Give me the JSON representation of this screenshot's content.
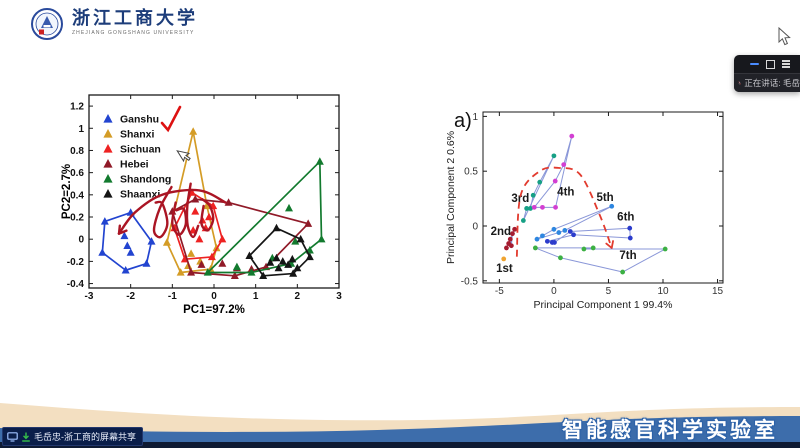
{
  "header": {
    "university_name_cn": "浙江工商大学",
    "university_name_en": "ZHEJIANG GONGSHANG UNIVERSITY"
  },
  "meeting_panel": {
    "speaking_status": "正在讲话: 毛岳",
    "controls": [
      "minimize",
      "restore",
      "menu"
    ],
    "mic_status": "muted"
  },
  "screen_share_badge": {
    "text": "毛岳忠-浙工商的屏幕共享",
    "icons": [
      "monitor-icon",
      "share-arrow-icon"
    ]
  },
  "footer": {
    "lab_title": "智能感官科学实验室"
  },
  "chart_data": [
    {
      "id": "pca-provinces",
      "type": "scatter",
      "title": "",
      "xlabel": "PC1=97.2%",
      "ylabel": "PC2=2.7%",
      "xlim": [
        -3,
        3
      ],
      "ylim": [
        -0.44,
        1.3
      ],
      "xticks": {
        "values": [
          -3,
          -2,
          -1,
          0,
          1,
          2,
          3
        ],
        "labels": [
          "-3",
          "-2",
          "-1",
          "0",
          "1",
          "2",
          "3"
        ]
      },
      "yticks": {
        "values": [
          -0.4,
          -0.2,
          0,
          0.2,
          0.4,
          0.6,
          0.8,
          1,
          1.2
        ],
        "labels": [
          "-0.4",
          "-0.2",
          "0",
          "0.2",
          "0.4",
          "0.6",
          "0.8",
          "1",
          "1.2"
        ]
      },
      "grid": false,
      "marker": "triangle",
      "legend": {
        "position": "top-left-inside",
        "checkmark_on": "Ganshu",
        "checkmark_color": "#dd1111"
      },
      "series": [
        {
          "name": "Ganshu",
          "color": "#2244d0",
          "hull": [
            [
              -2.62,
              0.16
            ],
            [
              -2.0,
              0.24
            ],
            [
              -1.5,
              -0.02
            ],
            [
              -1.62,
              -0.22
            ],
            [
              -2.12,
              -0.28
            ],
            [
              -2.68,
              -0.12
            ]
          ],
          "points": [
            [
              -2.62,
              0.16
            ],
            [
              -2.0,
              0.24
            ],
            [
              -1.5,
              -0.02
            ],
            [
              -1.62,
              -0.22
            ],
            [
              -2.12,
              -0.28
            ],
            [
              -2.68,
              -0.12
            ],
            [
              -2.15,
              0.03
            ],
            [
              -2.08,
              -0.06
            ],
            [
              -2.0,
              -0.12
            ]
          ]
        },
        {
          "name": "Shanxi",
          "color": "#d49c26",
          "hull": [
            [
              -0.5,
              0.97
            ],
            [
              -0.17,
              0.3
            ],
            [
              0.06,
              -0.08
            ],
            [
              -0.08,
              -0.27
            ],
            [
              -0.8,
              -0.3
            ],
            [
              -1.13,
              -0.03
            ]
          ],
          "points": [
            [
              -0.5,
              0.97
            ],
            [
              -0.17,
              0.3
            ],
            [
              0.06,
              -0.08
            ],
            [
              -0.08,
              -0.27
            ],
            [
              -0.8,
              -0.3
            ],
            [
              -1.13,
              -0.03
            ],
            [
              -0.55,
              -0.13
            ],
            [
              -0.33,
              -0.2
            ],
            [
              -0.62,
              -0.24
            ]
          ]
        },
        {
          "name": "Sichuan",
          "color": "#ee2222",
          "hull": [
            [
              -0.53,
              0.42
            ],
            [
              -0.02,
              0.3
            ],
            [
              0.2,
              0.0
            ],
            [
              -0.05,
              -0.16
            ],
            [
              -0.7,
              -0.18
            ],
            [
              -0.95,
              0.1
            ]
          ],
          "points": [
            [
              -0.53,
              0.42
            ],
            [
              -0.02,
              0.3
            ],
            [
              0.2,
              0.0
            ],
            [
              -0.05,
              -0.16
            ],
            [
              -0.7,
              -0.18
            ],
            [
              -0.95,
              0.1
            ],
            [
              -0.45,
              0.25
            ],
            [
              -0.28,
              0.17
            ],
            [
              -0.5,
              0.08
            ],
            [
              -0.2,
              0.1
            ],
            [
              -0.35,
              0.0
            ],
            [
              -0.12,
              0.2
            ]
          ]
        },
        {
          "name": "Hebei",
          "color": "#901a28",
          "hull": [
            [
              -1.0,
              0.25
            ],
            [
              -0.45,
              0.36
            ],
            [
              0.35,
              0.33
            ],
            [
              2.26,
              0.14
            ],
            [
              1.25,
              -0.25
            ],
            [
              0.5,
              -0.33
            ],
            [
              -0.55,
              -0.3
            ]
          ],
          "points": [
            [
              -1.0,
              0.25
            ],
            [
              -0.45,
              0.36
            ],
            [
              0.35,
              0.33
            ],
            [
              2.26,
              0.14
            ],
            [
              1.25,
              -0.25
            ],
            [
              0.5,
              -0.33
            ],
            [
              -0.55,
              -0.3
            ],
            [
              0.2,
              -0.22
            ],
            [
              0.55,
              -0.26
            ],
            [
              -0.3,
              -0.23
            ],
            [
              0.9,
              -0.27
            ]
          ]
        },
        {
          "name": "Shandong",
          "color": "#127a2e",
          "hull": [
            [
              -0.15,
              -0.3
            ],
            [
              2.54,
              0.7
            ],
            [
              2.58,
              0.0
            ],
            [
              1.85,
              -0.22
            ],
            [
              0.9,
              -0.3
            ]
          ],
          "points": [
            [
              -0.15,
              -0.3
            ],
            [
              2.54,
              0.7
            ],
            [
              2.58,
              0.0
            ],
            [
              1.85,
              -0.22
            ],
            [
              0.9,
              -0.3
            ],
            [
              1.8,
              0.28
            ],
            [
              1.95,
              -0.02
            ],
            [
              1.4,
              -0.17
            ],
            [
              0.55,
              -0.25
            ],
            [
              2.3,
              -0.1
            ]
          ]
        },
        {
          "name": "Shaanxi",
          "color": "#151515",
          "hull": [
            [
              1.5,
              0.1
            ],
            [
              2.08,
              0.0
            ],
            [
              2.3,
              -0.16
            ],
            [
              1.9,
              -0.31
            ],
            [
              1.18,
              -0.33
            ],
            [
              0.85,
              -0.15
            ]
          ],
          "points": [
            [
              1.5,
              0.1
            ],
            [
              2.08,
              0.0
            ],
            [
              2.3,
              -0.16
            ],
            [
              1.9,
              -0.31
            ],
            [
              1.18,
              -0.33
            ],
            [
              0.85,
              -0.15
            ],
            [
              1.5,
              -0.17
            ],
            [
              1.65,
              -0.2
            ],
            [
              1.78,
              -0.23
            ],
            [
              1.88,
              -0.18
            ],
            [
              1.55,
              -0.26
            ],
            [
              1.35,
              -0.21
            ],
            [
              2.0,
              -0.26
            ]
          ]
        }
      ],
      "annotations": {
        "pen_color": "#aa1524",
        "pen_strokes": [
          {
            "points": [
              [
                -1.02,
                0.47
              ],
              [
                -1.3,
                0.28
              ],
              [
                -1.44,
                0.08
              ],
              [
                -1.28,
                0.02
              ],
              [
                -1.12,
                0.14
              ],
              [
                -1.24,
                0.32
              ],
              [
                -1.4,
                0.33
              ]
            ],
            "arrow": false
          },
          {
            "points": [
              [
                -0.92,
                0.33
              ],
              [
                -1.0,
                0.14
              ],
              [
                -0.84,
                0.04
              ],
              [
                -0.68,
                0.13
              ],
              [
                -0.72,
                0.27
              ],
              [
                -0.9,
                0.26
              ]
            ],
            "arrow": false
          },
          {
            "points": [
              [
                -0.56,
                0.5
              ],
              [
                -0.64,
                0.3
              ],
              [
                -0.63,
                0.12
              ],
              [
                -0.5,
                0.02
              ],
              [
                -0.38,
                0.12
              ]
            ],
            "arrow": false
          },
          {
            "points": [
              [
                -0.25,
                0.3
              ],
              [
                -0.3,
                0.14
              ],
              [
                -0.15,
                0.08
              ],
              [
                -0.02,
                0.18
              ],
              [
                -0.1,
                0.3
              ],
              [
                -0.28,
                0.36
              ]
            ],
            "arrow": false
          },
          {
            "points": [
              [
                0.28,
                0.33
              ],
              [
                -0.35,
                0.44
              ],
              [
                -1.25,
                0.4
              ],
              [
                -1.9,
                0.24
              ],
              [
                -2.28,
                0.05
              ]
            ],
            "arrow": true
          }
        ]
      }
    },
    {
      "id": "pca-storage-time",
      "type": "scatter",
      "panel_label": "a)",
      "xlabel": "Principal Component 1 99.4%",
      "ylabel": "Principal Component 2 0.6%",
      "xlim": [
        -6.5,
        15.5
      ],
      "ylim": [
        -0.52,
        1.04
      ],
      "xticks": {
        "values": [
          -5,
          0,
          5,
          10,
          15
        ],
        "labels": [
          "-5",
          "0",
          "5",
          "10",
          "15"
        ]
      },
      "yticks": {
        "values": [
          -0.5,
          0,
          0.5,
          1
        ],
        "labels": [
          "-0.5",
          "0",
          "0.5",
          "1"
        ]
      },
      "grid": false,
      "marker": "circle",
      "trajectory_color": "#8a97d8",
      "series": [
        {
          "name": "1st",
          "color": "#f0a330",
          "label_pos": [
            -5.3,
            -0.42
          ],
          "points": [
            [
              -4.6,
              -0.3
            ]
          ]
        },
        {
          "name": "2nd",
          "color": "#a51c30",
          "label_pos": [
            -5.8,
            -0.08
          ],
          "points": [
            [
              -4.35,
              -0.2
            ],
            [
              -4.15,
              -0.16
            ],
            [
              -4.0,
              -0.12
            ],
            [
              -3.9,
              -0.18
            ],
            [
              -3.8,
              -0.07
            ],
            [
              -3.6,
              -0.03
            ]
          ]
        },
        {
          "name": "3rd",
          "color": "#16a085",
          "label_pos": [
            -3.9,
            0.22
          ],
          "points": [
            [
              -2.8,
              0.05
            ],
            [
              -2.5,
              0.16
            ],
            [
              -2.15,
              0.16
            ],
            [
              -1.9,
              0.28
            ],
            [
              -1.3,
              0.4
            ],
            [
              0.0,
              0.64
            ]
          ]
        },
        {
          "name": "4th",
          "color": "#d23fd2",
          "label_pos": [
            0.3,
            0.28
          ],
          "points": [
            [
              -1.8,
              0.17
            ],
            [
              -1.05,
              0.17
            ],
            [
              0.15,
              0.17
            ],
            [
              1.64,
              0.82
            ],
            [
              0.9,
              0.56
            ],
            [
              0.12,
              0.41
            ]
          ]
        },
        {
          "name": "5th",
          "color": "#2e86e0",
          "label_pos": [
            3.9,
            0.23
          ],
          "points": [
            [
              -1.55,
              -0.12
            ],
            [
              -1.05,
              -0.09
            ],
            [
              0.0,
              -0.03
            ],
            [
              5.3,
              0.18
            ],
            [
              1.0,
              -0.04
            ],
            [
              0.45,
              -0.06
            ]
          ]
        },
        {
          "name": "6th",
          "color": "#2c3ccc",
          "label_pos": [
            5.8,
            0.05
          ],
          "points": [
            [
              -0.6,
              -0.14
            ],
            [
              -0.15,
              -0.15
            ],
            [
              0.05,
              -0.15
            ],
            [
              1.5,
              -0.05
            ],
            [
              6.95,
              -0.02
            ],
            [
              7.0,
              -0.11
            ],
            [
              1.8,
              -0.08
            ]
          ]
        },
        {
          "name": "7th",
          "color": "#3cb043",
          "label_pos": [
            6.0,
            -0.3
          ],
          "points": [
            [
              -1.7,
              -0.2
            ],
            [
              3.6,
              -0.2
            ],
            [
              2.75,
              -0.21
            ],
            [
              10.2,
              -0.21
            ],
            [
              6.3,
              -0.42
            ],
            [
              0.6,
              -0.29
            ]
          ]
        }
      ],
      "dashed_arc": {
        "color": "#e23b2e",
        "arrow": true,
        "points": [
          [
            -3.4,
            -0.28
          ],
          [
            -3.05,
            0.28
          ],
          [
            -1.3,
            0.5
          ],
          [
            0.4,
            0.53
          ],
          [
            2.4,
            0.47
          ],
          [
            4.2,
            0.1
          ],
          [
            5.3,
            -0.2
          ]
        ]
      }
    }
  ]
}
